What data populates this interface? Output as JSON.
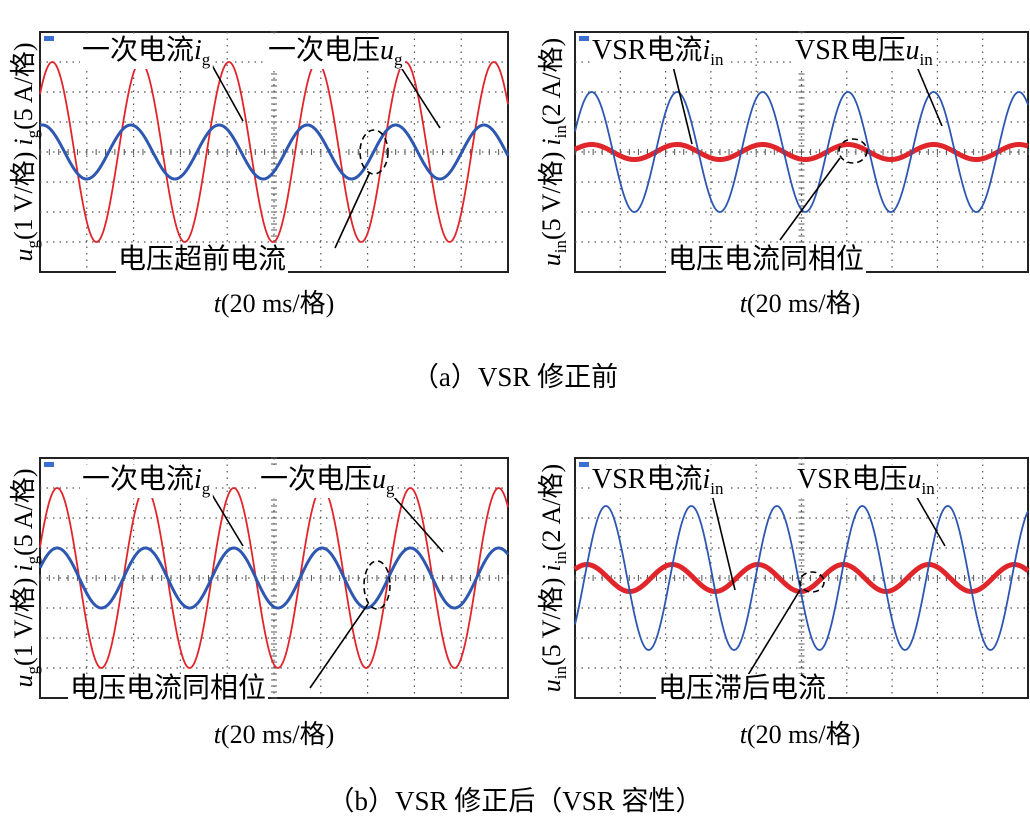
{
  "panels": [
    {
      "ylabel_parts": {
        "u": "u",
        "u_sub": "g",
        "u_unit": "(1 V/格)",
        "i": "i",
        "i_sub": "g",
        "i_unit": "(5 A/格)"
      },
      "xlabel": {
        "t": "t",
        "unit": "(20 ms/格)"
      },
      "legend_current": {
        "text": "一次电流",
        "sym": "i",
        "sub": "g"
      },
      "legend_voltage": {
        "text": "一次电压",
        "sym": "u",
        "sub": "g"
      },
      "annotation": "电压超前电流"
    },
    {
      "ylabel_parts": {
        "u": "u",
        "u_sub": "in",
        "u_unit": "(5 V/格)",
        "i": "i",
        "i_sub": "in",
        "i_unit": "(2 A/格)"
      },
      "xlabel": {
        "t": "t",
        "unit": "(20 ms/格)"
      },
      "legend_current": {
        "text": "VSR电流",
        "sym": "i",
        "sub": "in"
      },
      "legend_voltage": {
        "text": "VSR电压",
        "sym": "u",
        "sub": "in"
      },
      "annotation": "电压电流同相位"
    },
    {
      "ylabel_parts": {
        "u": "u",
        "u_sub": "g",
        "u_unit": "(1 V/格)",
        "i": "i",
        "i_sub": "g",
        "i_unit": "(5 A/格)"
      },
      "xlabel": {
        "t": "t",
        "unit": "(20 ms/格)"
      },
      "legend_current": {
        "text": "一次电流",
        "sym": "i",
        "sub": "g"
      },
      "legend_voltage": {
        "text": "一次电压",
        "sym": "u",
        "sub": "g"
      },
      "annotation": "电压电流同相位"
    },
    {
      "ylabel_parts": {
        "u": "u",
        "u_sub": "in",
        "u_unit": "(5 V/格)",
        "i": "i",
        "i_sub": "in",
        "i_unit": "(2 A/格)"
      },
      "xlabel": {
        "t": "t",
        "unit": "(20 ms/格)"
      },
      "legend_current": {
        "text": "VSR电流",
        "sym": "i",
        "sub": "in"
      },
      "legend_voltage": {
        "text": "VSR电压",
        "sym": "u",
        "sub": "in"
      },
      "annotation": "电压滞后电流"
    }
  ],
  "captions": {
    "a": "（a）VSR 修正前",
    "b": "（b）VSR 修正后（VSR 容性）"
  },
  "colors": {
    "red": "#e0262b",
    "blue": "#2d57b0",
    "grid": "#555555"
  },
  "chart_data": [
    {
      "type": "line",
      "xlabel": "t(20 ms/格)",
      "ylabel": "ug(1 V/格) ig(5 A/格)",
      "x_divisions": 10,
      "y_divisions": 8,
      "series": [
        {
          "name": "一次电流ig",
          "color": "#e0262b",
          "amplitude_div": 3.0,
          "cycles": 5.3,
          "phase_deg": 40
        },
        {
          "name": "一次电压ug",
          "color": "#2d57b0",
          "amplitude_div": 0.9,
          "cycles": 5.3,
          "phase_deg": 80
        }
      ]
    },
    {
      "type": "line",
      "xlabel": "t(20 ms/格)",
      "ylabel": "uin(5 V/格) iin(2 A/格)",
      "x_divisions": 10,
      "y_divisions": 8,
      "series": [
        {
          "name": "VSR电流iin",
          "color": "#e0262b",
          "amplitude_div": 0.25,
          "cycles": 5.3,
          "phase_deg": 20
        },
        {
          "name": "VSR电压uin",
          "color": "#2d57b0",
          "amplitude_div": 2.0,
          "cycles": 5.3,
          "phase_deg": 20
        }
      ]
    },
    {
      "type": "line",
      "xlabel": "t(20 ms/格)",
      "ylabel": "ug(1 V/格) ig(5 A/格)",
      "x_divisions": 10,
      "y_divisions": 8,
      "series": [
        {
          "name": "一次电流ig",
          "color": "#e0262b",
          "amplitude_div": 3.0,
          "cycles": 5.3,
          "phase_deg": 20
        },
        {
          "name": "一次电压ug",
          "color": "#2d57b0",
          "amplitude_div": 1.0,
          "cycles": 5.3,
          "phase_deg": 20
        }
      ]
    },
    {
      "type": "line",
      "xlabel": "t(20 ms/格)",
      "ylabel": "uin(5 V/格) iin(2 A/格)",
      "x_divisions": 10,
      "y_divisions": 8,
      "series": [
        {
          "name": "VSR电流iin",
          "color": "#e0262b",
          "amplitude_div": 0.45,
          "cycles": 5.3,
          "phase_deg": 40
        },
        {
          "name": "VSR电压uin",
          "color": "#2d57b0",
          "amplitude_div": 2.4,
          "cycles": 5.3,
          "phase_deg": -40
        }
      ]
    }
  ]
}
